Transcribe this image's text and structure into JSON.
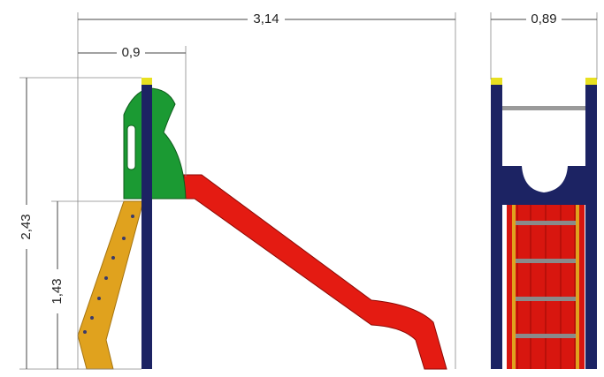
{
  "dimensions": [
    "3,14",
    "0,9",
    "0,89",
    "2,43",
    "1,43"
  ]
}
